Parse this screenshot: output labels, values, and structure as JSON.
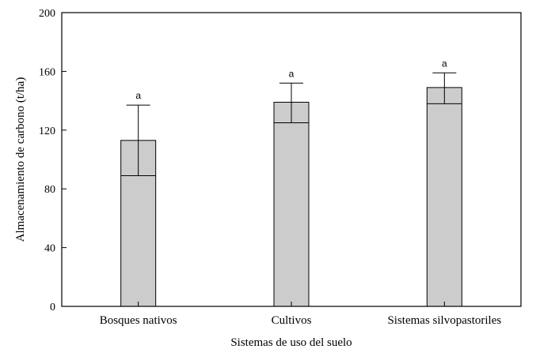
{
  "chart_data": {
    "type": "bar",
    "xlabel": "Sistemas de uso del suelo",
    "ylabel": "Almacenamiento de carbono (t/ha)",
    "ylim": [
      0,
      200
    ],
    "yticks": [
      0,
      40,
      80,
      120,
      160,
      200
    ],
    "grid": false,
    "bar_color": "#cccccc",
    "categories": [
      "Bosques nativos",
      "Cultivos",
      "Sistemas silvopastoriles"
    ],
    "values": [
      113,
      139,
      149
    ],
    "error_upper": [
      137,
      152,
      159
    ],
    "error_lower": [
      89,
      125,
      138
    ],
    "significance": [
      "a",
      "a",
      "a"
    ]
  }
}
